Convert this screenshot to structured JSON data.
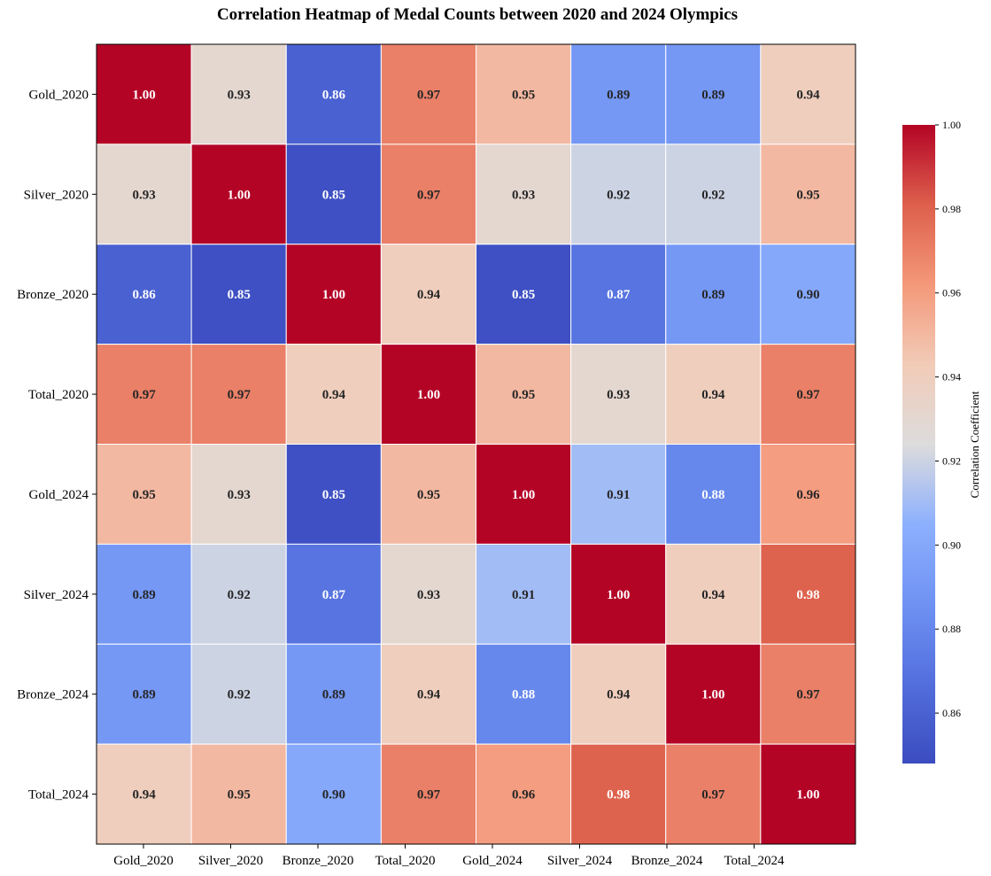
{
  "chart_data": {
    "type": "heatmap",
    "title": "Correlation Heatmap of Medal Counts between 2020 and 2024 Olympics",
    "rows": [
      "Gold_2020",
      "Silver_2020",
      "Bronze_2020",
      "Total_2020",
      "Gold_2024",
      "Silver_2024",
      "Bronze_2024",
      "Total_2024"
    ],
    "columns": [
      "Gold_2020",
      "Silver_2020",
      "Bronze_2020",
      "Total_2020",
      "Gold_2024",
      "Silver_2024",
      "Bronze_2024",
      "Total_2024"
    ],
    "values": [
      [
        1.0,
        0.93,
        0.86,
        0.97,
        0.95,
        0.89,
        0.89,
        0.94
      ],
      [
        0.93,
        1.0,
        0.85,
        0.97,
        0.93,
        0.92,
        0.92,
        0.95
      ],
      [
        0.86,
        0.85,
        1.0,
        0.94,
        0.85,
        0.87,
        0.89,
        0.9
      ],
      [
        0.97,
        0.97,
        0.94,
        1.0,
        0.95,
        0.93,
        0.94,
        0.97
      ],
      [
        0.95,
        0.93,
        0.85,
        0.95,
        1.0,
        0.91,
        0.88,
        0.96
      ],
      [
        0.89,
        0.92,
        0.87,
        0.93,
        0.91,
        1.0,
        0.94,
        0.98
      ],
      [
        0.89,
        0.92,
        0.89,
        0.94,
        0.88,
        0.94,
        1.0,
        0.97
      ],
      [
        0.94,
        0.95,
        0.9,
        0.97,
        0.96,
        0.98,
        0.97,
        1.0
      ]
    ],
    "colormap": "coolwarm",
    "value_range": [
      0.848,
      1.0
    ],
    "colorbar": {
      "label": "Correlation Coefficient",
      "ticks": [
        "0.86",
        "0.88",
        "0.90",
        "0.92",
        "0.94",
        "0.96",
        "0.98",
        "1.00"
      ],
      "tick_values": [
        0.86,
        0.88,
        0.9,
        0.92,
        0.94,
        0.96,
        0.98,
        1.0
      ]
    },
    "annotations": true
  }
}
